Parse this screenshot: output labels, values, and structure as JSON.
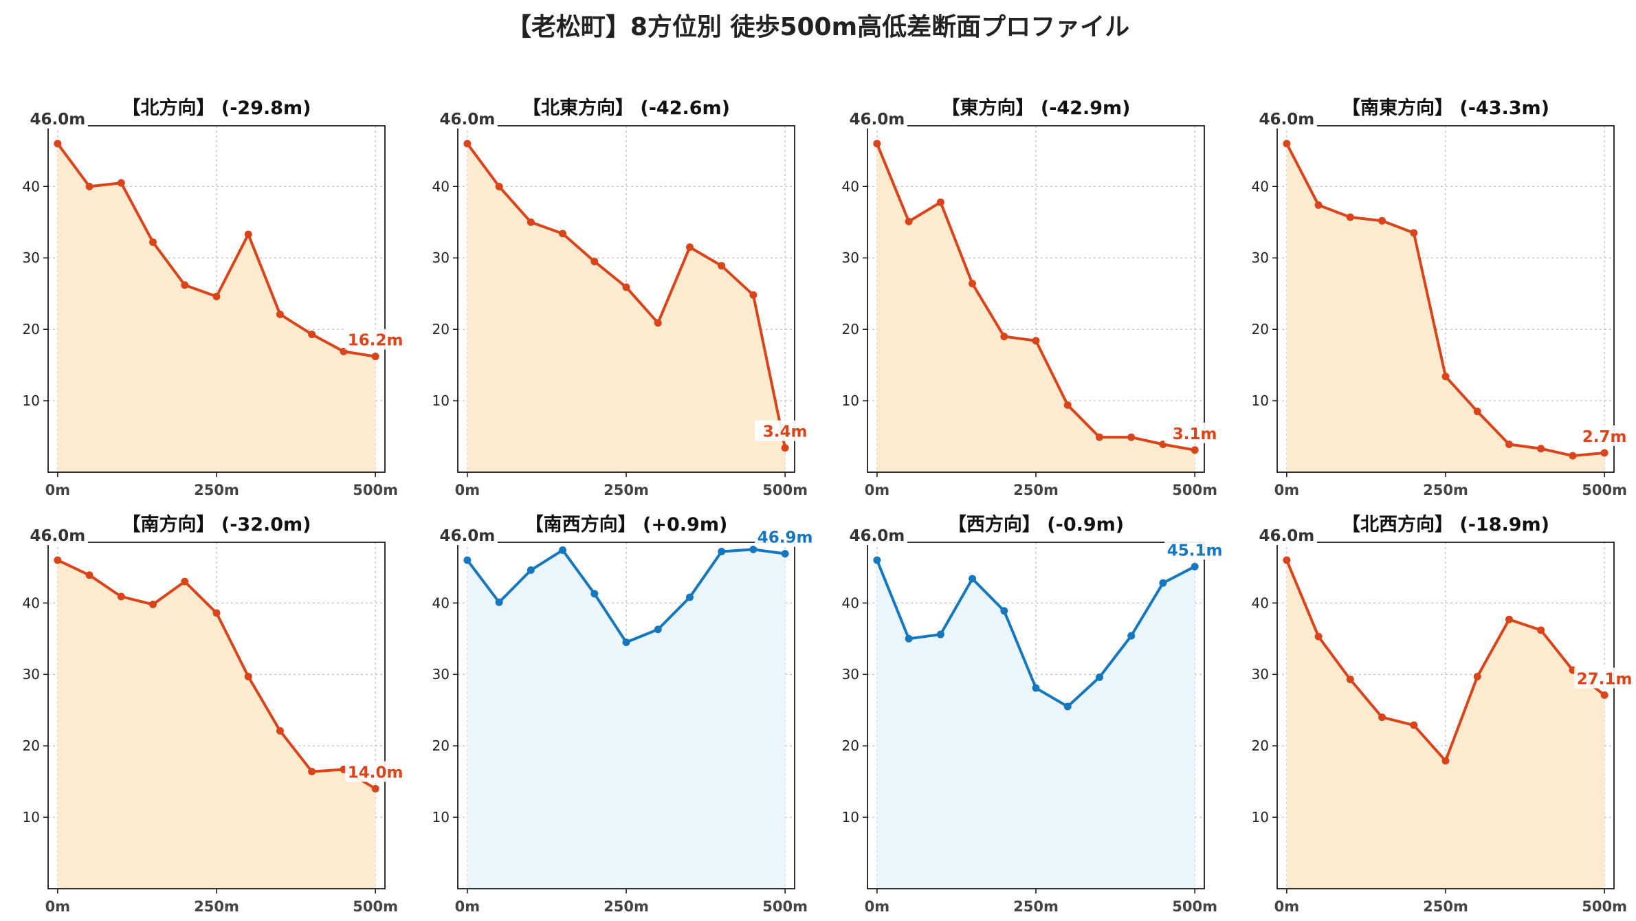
{
  "title": "【老松町】8方位別 徒歩500m高低差断面プロファイル",
  "colors": {
    "down_line": "#d9441a",
    "down_fill": "#fdebd0",
    "up_line": "#1578be",
    "up_fill": "#eaf6fc",
    "start_label": "#333333",
    "axis": "#000000",
    "grid": "#bbbbbb"
  },
  "chart_data": [
    {
      "type": "area",
      "title": "【北方向】 (-29.8m)",
      "trend": "down",
      "x": [
        0,
        50,
        100,
        150,
        200,
        250,
        300,
        350,
        400,
        450,
        500
      ],
      "y": [
        46.0,
        40.0,
        40.5,
        32.2,
        26.2,
        24.6,
        33.3,
        22.1,
        19.3,
        16.9,
        16.2
      ],
      "xticks": [
        "0m",
        "250m",
        "500m"
      ],
      "yticks": [
        10,
        20,
        30,
        40
      ],
      "xlim": [
        -15,
        515
      ],
      "ylim": [
        0,
        48.5
      ],
      "start_label": "46.0m",
      "end_label": "16.2m",
      "grid": true
    },
    {
      "type": "area",
      "title": "【北東方向】 (-42.6m)",
      "trend": "down",
      "x": [
        0,
        50,
        100,
        150,
        200,
        250,
        300,
        350,
        400,
        450,
        500
      ],
      "y": [
        46.0,
        40.0,
        35.0,
        33.4,
        29.5,
        25.9,
        20.9,
        31.5,
        28.9,
        24.8,
        3.4
      ],
      "xticks": [
        "0m",
        "250m",
        "500m"
      ],
      "yticks": [
        10,
        20,
        30,
        40
      ],
      "xlim": [
        -15,
        515
      ],
      "ylim": [
        0,
        48.5
      ],
      "start_label": "46.0m",
      "end_label": "3.4m",
      "grid": true
    },
    {
      "type": "area",
      "title": "【東方向】 (-42.9m)",
      "trend": "down",
      "x": [
        0,
        50,
        100,
        150,
        200,
        250,
        300,
        350,
        400,
        450,
        500
      ],
      "y": [
        46.0,
        35.1,
        37.8,
        26.4,
        19.0,
        18.4,
        9.4,
        4.9,
        4.9,
        3.9,
        3.1
      ],
      "xticks": [
        "0m",
        "250m",
        "500m"
      ],
      "yticks": [
        10,
        20,
        30,
        40
      ],
      "xlim": [
        -15,
        515
      ],
      "ylim": [
        0,
        48.5
      ],
      "start_label": "46.0m",
      "end_label": "3.1m",
      "grid": true
    },
    {
      "type": "area",
      "title": "【南東方向】 (-43.3m)",
      "trend": "down",
      "x": [
        0,
        50,
        100,
        150,
        200,
        250,
        300,
        350,
        400,
        450,
        500
      ],
      "y": [
        46.0,
        37.4,
        35.7,
        35.2,
        33.5,
        13.4,
        8.5,
        3.9,
        3.3,
        2.3,
        2.7
      ],
      "xticks": [
        "0m",
        "250m",
        "500m"
      ],
      "yticks": [
        10,
        20,
        30,
        40
      ],
      "xlim": [
        -15,
        515
      ],
      "ylim": [
        0,
        48.5
      ],
      "start_label": "46.0m",
      "end_label": "2.7m",
      "grid": true
    },
    {
      "type": "area",
      "title": "【南方向】 (-32.0m)",
      "trend": "down",
      "x": [
        0,
        50,
        100,
        150,
        200,
        250,
        300,
        350,
        400,
        450,
        500
      ],
      "y": [
        46.0,
        43.9,
        40.9,
        39.8,
        43.0,
        38.6,
        29.7,
        22.1,
        16.4,
        16.7,
        14.0
      ],
      "xticks": [
        "0m",
        "250m",
        "500m"
      ],
      "yticks": [
        10,
        20,
        30,
        40
      ],
      "xlim": [
        -15,
        515
      ],
      "ylim": [
        0,
        48.5
      ],
      "start_label": "46.0m",
      "end_label": "14.0m",
      "grid": true
    },
    {
      "type": "area",
      "title": "【南西方向】 (+0.9m)",
      "trend": "up",
      "x": [
        0,
        50,
        100,
        150,
        200,
        250,
        300,
        350,
        400,
        450,
        500
      ],
      "y": [
        46.0,
        40.1,
        44.6,
        47.4,
        41.3,
        34.5,
        36.3,
        40.8,
        47.2,
        47.5,
        46.9
      ],
      "xticks": [
        "0m",
        "250m",
        "500m"
      ],
      "yticks": [
        10,
        20,
        30,
        40
      ],
      "xlim": [
        -15,
        515
      ],
      "ylim": [
        0,
        48.5
      ],
      "start_label": "46.0m",
      "end_label": "46.9m",
      "grid": true
    },
    {
      "type": "area",
      "title": "【西方向】 (-0.9m)",
      "trend": "up",
      "x": [
        0,
        50,
        100,
        150,
        200,
        250,
        300,
        350,
        400,
        450,
        500
      ],
      "y": [
        46.0,
        35.0,
        35.6,
        43.4,
        38.9,
        28.1,
        25.5,
        29.6,
        35.4,
        42.8,
        45.1
      ],
      "xticks": [
        "0m",
        "250m",
        "500m"
      ],
      "yticks": [
        10,
        20,
        30,
        40
      ],
      "xlim": [
        -15,
        515
      ],
      "ylim": [
        0,
        48.5
      ],
      "start_label": "46.0m",
      "end_label": "45.1m",
      "grid": true
    },
    {
      "type": "area",
      "title": "【北西方向】 (-18.9m)",
      "trend": "down",
      "x": [
        0,
        50,
        100,
        150,
        200,
        250,
        300,
        350,
        400,
        450,
        500
      ],
      "y": [
        46.0,
        35.3,
        29.3,
        24.0,
        22.9,
        17.9,
        29.7,
        37.7,
        36.2,
        30.6,
        27.1
      ],
      "xticks": [
        "0m",
        "250m",
        "500m"
      ],
      "yticks": [
        10,
        20,
        30,
        40
      ],
      "xlim": [
        -15,
        515
      ],
      "ylim": [
        0,
        48.5
      ],
      "start_label": "46.0m",
      "end_label": "27.1m",
      "grid": true
    }
  ]
}
